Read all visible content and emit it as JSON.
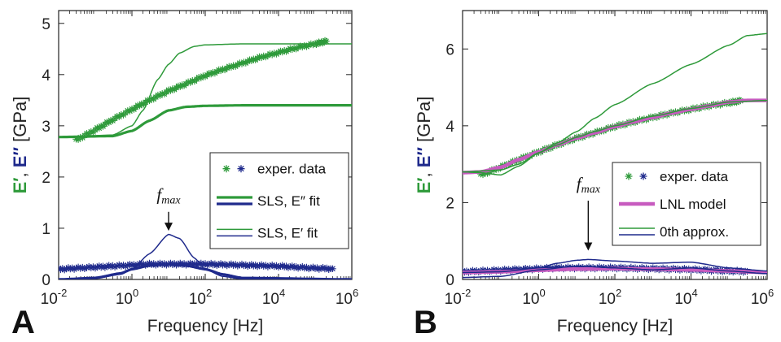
{
  "colors": {
    "storage": "#2e9a3a",
    "loss": "#1f2a8c",
    "lnl": "#c75bbf",
    "axis": "#222222"
  },
  "chart_data": [
    {
      "panel_label": "A",
      "type": "line",
      "xlabel": "Frequency [Hz]",
      "x_scale": "log",
      "xlim": [
        0.01,
        1000000
      ],
      "ylim": [
        0,
        5.25
      ],
      "x_ticks": [
        {
          "base": "10",
          "exp": "-2"
        },
        {
          "base": "10",
          "exp": "0"
        },
        {
          "base": "10",
          "exp": "2"
        },
        {
          "base": "10",
          "exp": "4"
        },
        {
          "base": "10",
          "exp": "6"
        }
      ],
      "y_ticks": [
        "0",
        "1",
        "2",
        "3",
        "4",
        "5"
      ],
      "ylabel_parts": [
        "E′",
        ", ",
        "E″",
        " [GPa]"
      ],
      "annotation": {
        "text": "f",
        "sub": "max",
        "x": 10,
        "y_text": 1.55,
        "arrow_from": 1.32,
        "arrow_to": 0.95
      },
      "legend": [
        {
          "label": "exper. data",
          "style": "stars"
        },
        {
          "label": "SLS, E″ fit",
          "style": "thick"
        },
        {
          "label": "SLS, E′ fit",
          "style": "thin"
        }
      ],
      "series": [
        {
          "role": "exper-E-storage",
          "style": "stars",
          "color": "green",
          "x": [
            0.03,
            0.1,
            0.3,
            1,
            3,
            10,
            30,
            100,
            300,
            1000,
            3000,
            10000,
            30000,
            100000,
            200000
          ],
          "y": [
            2.72,
            2.92,
            3.12,
            3.32,
            3.5,
            3.68,
            3.82,
            3.98,
            4.1,
            4.22,
            4.33,
            4.43,
            4.52,
            4.6,
            4.65
          ]
        },
        {
          "role": "exper-E-loss",
          "style": "stars",
          "color": "blue",
          "x": [
            0.01,
            0.03,
            0.1,
            0.3,
            1,
            3,
            10,
            30,
            100,
            300,
            1000,
            3000,
            10000,
            30000,
            100000,
            300000
          ],
          "y": [
            0.2,
            0.22,
            0.24,
            0.26,
            0.28,
            0.3,
            0.3,
            0.3,
            0.3,
            0.29,
            0.28,
            0.27,
            0.26,
            0.24,
            0.22,
            0.21
          ]
        },
        {
          "role": "sls-E-storage-thick",
          "style": "thick",
          "color": "green",
          "x": [
            0.01,
            0.3,
            1,
            3,
            10,
            30,
            100,
            1000,
            1000000
          ],
          "y": [
            2.78,
            2.8,
            2.9,
            3.1,
            3.3,
            3.37,
            3.39,
            3.4,
            3.4
          ]
        },
        {
          "role": "sls-E-storage-thin",
          "style": "thin",
          "color": "green",
          "x": [
            0.01,
            0.3,
            1,
            2,
            5,
            10,
            20,
            50,
            100,
            1000,
            1000000
          ],
          "y": [
            2.78,
            2.82,
            3.0,
            3.3,
            3.9,
            4.2,
            4.42,
            4.55,
            4.58,
            4.6,
            4.6
          ]
        },
        {
          "role": "sls-E-loss-thick",
          "style": "thick",
          "color": "blue",
          "x": [
            0.01,
            0.1,
            0.5,
            1,
            3,
            10,
            30,
            100,
            300,
            1000,
            1000000
          ],
          "y": [
            0,
            0.03,
            0.12,
            0.2,
            0.27,
            0.3,
            0.27,
            0.2,
            0.1,
            0.03,
            0
          ]
        },
        {
          "role": "sls-E-loss-thin",
          "style": "thin",
          "color": "blue",
          "x": [
            0.01,
            0.1,
            0.5,
            1,
            3,
            10,
            20,
            50,
            100,
            300,
            1000,
            1000000
          ],
          "y": [
            0,
            0.02,
            0.1,
            0.2,
            0.5,
            0.88,
            0.8,
            0.42,
            0.2,
            0.06,
            0.01,
            0
          ]
        }
      ]
    },
    {
      "panel_label": "B",
      "type": "line",
      "xlabel": "Frequency [Hz]",
      "x_scale": "log",
      "xlim": [
        0.01,
        1000000
      ],
      "ylim": [
        0,
        7.0
      ],
      "x_ticks": [
        {
          "base": "10",
          "exp": "-2"
        },
        {
          "base": "10",
          "exp": "0"
        },
        {
          "base": "10",
          "exp": "2"
        },
        {
          "base": "10",
          "exp": "4"
        },
        {
          "base": "10",
          "exp": "6"
        }
      ],
      "y_ticks": [
        "0",
        "2",
        "4",
        "6"
      ],
      "ylabel_parts": [
        "E′",
        ", ",
        "E″",
        " [GPa]"
      ],
      "annotation": {
        "text": "f",
        "sub": "max",
        "x": 20,
        "y_text": 2.35,
        "arrow_from": 2.05,
        "arrow_to": 0.75
      },
      "legend": [
        {
          "label": "exper. data",
          "style": "stars"
        },
        {
          "label": "LNL model",
          "style": "lnl"
        },
        {
          "label": "0th approx.",
          "style": "thin"
        }
      ],
      "series": [
        {
          "role": "exper-E-storage",
          "style": "stars",
          "color": "green",
          "x": [
            0.03,
            0.1,
            0.3,
            1,
            3,
            10,
            30,
            100,
            300,
            1000,
            3000,
            10000,
            30000,
            100000,
            200000
          ],
          "y": [
            2.72,
            2.92,
            3.12,
            3.32,
            3.5,
            3.68,
            3.82,
            3.98,
            4.1,
            4.22,
            4.33,
            4.43,
            4.52,
            4.6,
            4.65
          ]
        },
        {
          "role": "exper-E-loss",
          "style": "stars",
          "color": "blue",
          "x": [
            0.01,
            0.03,
            0.1,
            0.3,
            1,
            3,
            10,
            30,
            100,
            300,
            1000,
            3000,
            10000,
            30000,
            100000,
            300000
          ],
          "y": [
            0.2,
            0.22,
            0.24,
            0.26,
            0.28,
            0.3,
            0.3,
            0.3,
            0.3,
            0.29,
            0.28,
            0.27,
            0.26,
            0.24,
            0.22,
            0.21
          ]
        },
        {
          "role": "lnl-E-storage",
          "style": "lnl",
          "color": "magenta",
          "x": [
            0.01,
            0.03,
            0.1,
            0.3,
            1,
            3,
            10,
            30,
            100,
            300,
            1000,
            3000,
            10000,
            30000,
            100000,
            300000,
            1000000
          ],
          "y": [
            2.78,
            2.8,
            2.92,
            3.12,
            3.32,
            3.5,
            3.68,
            3.82,
            3.98,
            4.1,
            4.22,
            4.33,
            4.43,
            4.52,
            4.62,
            4.66,
            4.66
          ]
        },
        {
          "role": "lnl-E-loss",
          "style": "lnl",
          "color": "magenta",
          "x": [
            0.01,
            0.1,
            1,
            10,
            100,
            1000,
            10000,
            100000,
            1000000
          ],
          "y": [
            0.18,
            0.2,
            0.24,
            0.27,
            0.28,
            0.27,
            0.25,
            0.22,
            0.18
          ]
        },
        {
          "role": "0th-E-storage-upper",
          "style": "thin",
          "color": "green",
          "x": [
            0.01,
            0.1,
            0.3,
            1,
            3,
            10,
            30,
            100,
            1000,
            10000,
            100000,
            300000,
            1000000
          ],
          "y": [
            2.8,
            2.85,
            3.0,
            3.3,
            3.55,
            3.85,
            4.2,
            4.55,
            5.1,
            5.6,
            6.1,
            6.35,
            6.4
          ]
        },
        {
          "role": "0th-E-storage-lower",
          "style": "thin",
          "color": "green",
          "x": [
            0.01,
            0.03,
            0.1,
            0.3,
            1,
            3,
            10,
            30,
            100,
            1000,
            10000,
            100000,
            1000000
          ],
          "y": [
            2.8,
            2.78,
            2.72,
            2.95,
            3.3,
            3.5,
            3.7,
            3.85,
            4.0,
            4.25,
            4.45,
            4.62,
            4.66
          ]
        },
        {
          "role": "0th-E-loss-a",
          "style": "thin",
          "color": "blue",
          "x": [
            0.01,
            0.1,
            1,
            3,
            10,
            20,
            100,
            1000,
            10000,
            100000,
            1000000
          ],
          "y": [
            0.18,
            0.2,
            0.3,
            0.42,
            0.5,
            0.52,
            0.48,
            0.42,
            0.45,
            0.3,
            0.22
          ]
        },
        {
          "role": "0th-E-loss-b",
          "style": "thin",
          "color": "blue",
          "x": [
            0.01,
            0.1,
            1,
            10,
            100,
            1000,
            10000,
            100000,
            1000000
          ],
          "y": [
            0.05,
            0.08,
            0.25,
            0.35,
            0.3,
            0.25,
            0.3,
            0.22,
            0.15
          ]
        }
      ]
    }
  ]
}
